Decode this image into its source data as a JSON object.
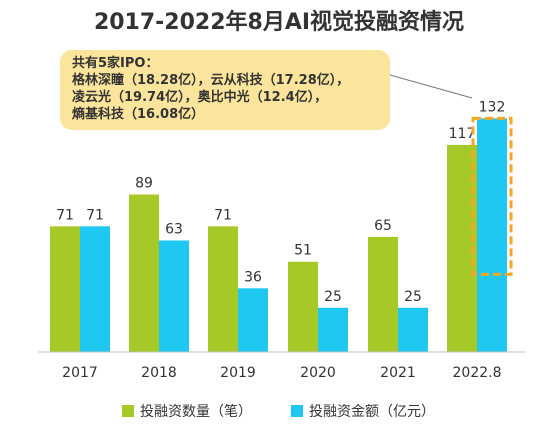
{
  "chart_data": {
    "type": "bar",
    "title": "2017-2022年8月AI视觉投融资情况",
    "categories": [
      "2017",
      "2018",
      "2019",
      "2020",
      "2021",
      "2022.8"
    ],
    "series": [
      {
        "name": "投融资数量（笔）",
        "color": "#a6c927",
        "values": [
          71,
          89,
          71,
          51,
          65,
          117
        ]
      },
      {
        "name": "投融资金额（亿元）",
        "color": "#1fc8f0",
        "values": [
          71,
          63,
          36,
          25,
          25,
          132
        ]
      }
    ],
    "ylim": [
      0,
      140
    ],
    "grid": false,
    "legend_position": "bottom",
    "annotation": {
      "lines": [
        "共有5家IPO：",
        "格林深瞳（18.28亿），云从科技（17.28亿），",
        "凌云光（19.74亿），奥比中光（12.4亿），",
        "熵基科技（16.08亿）"
      ],
      "box_color": "#fbe49b",
      "highlight_color": "#f5a623"
    }
  }
}
